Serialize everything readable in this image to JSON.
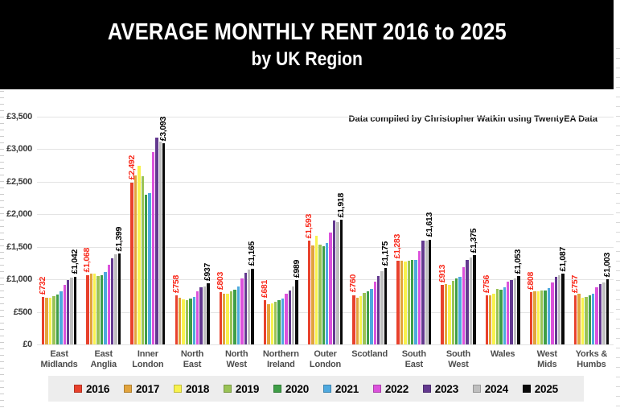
{
  "header": {
    "title_line1": "AVERAGE MONTHLY RENT 2016 to 2025",
    "title_line2": "by UK Region"
  },
  "attribution": "Data compiled by Christopher Watkin using TwentyEA Data",
  "colors": {
    "header_bg": "#000000",
    "header_text": "#ffffff",
    "legend_bg": "#ededed",
    "grid": "#e4e4e4",
    "ytick_text": "#3a3a3a",
    "xlabel_text": "#4d4d4d",
    "label_2016": "#f8281a",
    "label_2025": "#000000"
  },
  "chart_data": {
    "type": "bar",
    "title": "AVERAGE MONTHLY RENT 2016 to 2025",
    "subtitle": "by UK Region",
    "xlabel": "",
    "ylabel": "",
    "ylim": [
      0,
      3500
    ],
    "ytick_step": 500,
    "ytick_labels": [
      "£0",
      "£500",
      "£1,000",
      "£1,500",
      "£2,000",
      "£2,500",
      "£3,000",
      "£3,500"
    ],
    "grid": true,
    "legend_position": "bottom",
    "categories": [
      "East Midlands",
      "East Anglia",
      "Inner London",
      "North East",
      "North West",
      "Northern Ireland",
      "Outer London",
      "Scotland",
      "South East",
      "South West",
      "Wales",
      "West Mids",
      "Yorks & Humbs"
    ],
    "category_label_lines": [
      [
        "East",
        "Midlands"
      ],
      [
        "East",
        "Anglia"
      ],
      [
        "Inner",
        "London"
      ],
      [
        "North",
        "East"
      ],
      [
        "North",
        "West"
      ],
      [
        "Northern",
        "Ireland"
      ],
      [
        "Outer",
        "London"
      ],
      [
        "Scotland"
      ],
      [
        "South",
        "East"
      ],
      [
        "South",
        "West"
      ],
      [
        "Wales"
      ],
      [
        "West",
        "Mids"
      ],
      [
        "Yorks &",
        "Humbs"
      ]
    ],
    "series": [
      {
        "name": "2016",
        "color": "#e8412c",
        "values": [
          732,
          1068,
          2492,
          758,
          803,
          681,
          1593,
          760,
          1283,
          913,
          756,
          808,
          757
        ]
      },
      {
        "name": "2017",
        "color": "#e2a43d",
        "values": [
          718,
          1085,
          2600,
          720,
          775,
          615,
          1520,
          720,
          1290,
          925,
          750,
          820,
          775
        ]
      },
      {
        "name": "2018",
        "color": "#f8f24e",
        "values": [
          722,
          1090,
          2750,
          690,
          785,
          630,
          1665,
          740,
          1275,
          915,
          775,
          818,
          715
        ]
      },
      {
        "name": "2019",
        "color": "#9ac356",
        "values": [
          740,
          1055,
          2590,
          680,
          815,
          655,
          1530,
          790,
          1285,
          975,
          855,
          825,
          730
        ]
      },
      {
        "name": "2020",
        "color": "#3f9e47",
        "values": [
          768,
          1060,
          2300,
          700,
          845,
          680,
          1510,
          815,
          1295,
          1010,
          835,
          828,
          752
        ]
      },
      {
        "name": "2021",
        "color": "#4fa9df",
        "values": [
          818,
          1110,
          2330,
          733,
          895,
          700,
          1555,
          855,
          1300,
          1045,
          878,
          870,
          778
        ]
      },
      {
        "name": "2022",
        "color": "#dc52dc",
        "values": [
          915,
          1230,
          2950,
          820,
          1020,
          785,
          1720,
          960,
          1430,
          1190,
          966,
          955,
          880
        ]
      },
      {
        "name": "2023",
        "color": "#63398f",
        "values": [
          985,
          1320,
          3175,
          875,
          1105,
          825,
          1900,
          1050,
          1600,
          1300,
          988,
          1035,
          928
        ]
      },
      {
        "name": "2024",
        "color": "#bfbfbf",
        "values": [
          1030,
          1390,
          3120,
          890,
          1150,
          885,
          1880,
          1130,
          1595,
          1340,
          1018,
          1060,
          958
        ]
      },
      {
        "name": "2025",
        "color": "#0a0a0a",
        "values": [
          1042,
          1399,
          3093,
          937,
          1165,
          989,
          1918,
          1175,
          1613,
          1375,
          1053,
          1087,
          1003
        ]
      }
    ],
    "value_labels": {
      "series_2016": [
        "£732",
        "£1,068",
        "£2,492",
        "£758",
        "£803",
        "£681",
        "£1,593",
        "£760",
        "£1,283",
        "£913",
        "£756",
        "£808",
        "£757"
      ],
      "series_2025": [
        "£1,042",
        "£1,399",
        "£3,093",
        "£937",
        "£1,165",
        "£989",
        "£1,918",
        "£1,175",
        "£1,613",
        "£1,375",
        "£1,053",
        "£1,087",
        "£1,003"
      ]
    }
  }
}
